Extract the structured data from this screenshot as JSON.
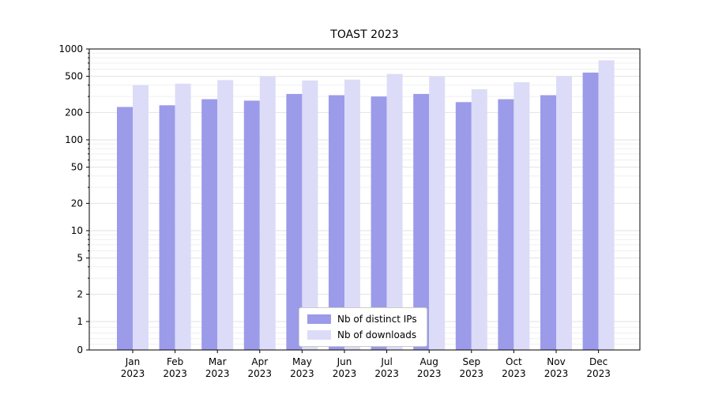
{
  "chart_data": {
    "type": "bar",
    "title": "TOAST 2023",
    "categories": [
      "Jan",
      "Feb",
      "Mar",
      "Apr",
      "May",
      "Jun",
      "Jul",
      "Aug",
      "Sep",
      "Oct",
      "Nov",
      "Dec"
    ],
    "year": "2023",
    "series": [
      {
        "name": "Nb of distinct IPs",
        "color": "#9b9bea",
        "values": [
          230,
          240,
          280,
          270,
          320,
          310,
          300,
          320,
          260,
          280,
          310,
          550
        ]
      },
      {
        "name": "Nb of downloads",
        "color": "#dcdcf8",
        "values": [
          400,
          415,
          455,
          500,
          450,
          460,
          530,
          500,
          360,
          430,
          505,
          750
        ]
      }
    ],
    "yscale": "symlog",
    "ylim": [
      0,
      1000
    ],
    "yticks": [
      0,
      1,
      2,
      5,
      10,
      20,
      50,
      100,
      200,
      500,
      1000
    ],
    "grid": true,
    "legend_position": "lower center"
  },
  "colors": {
    "grid_major": "#e2e2e2",
    "grid_minor": "#efefef",
    "axis": "#000000",
    "background": "#ffffff"
  }
}
